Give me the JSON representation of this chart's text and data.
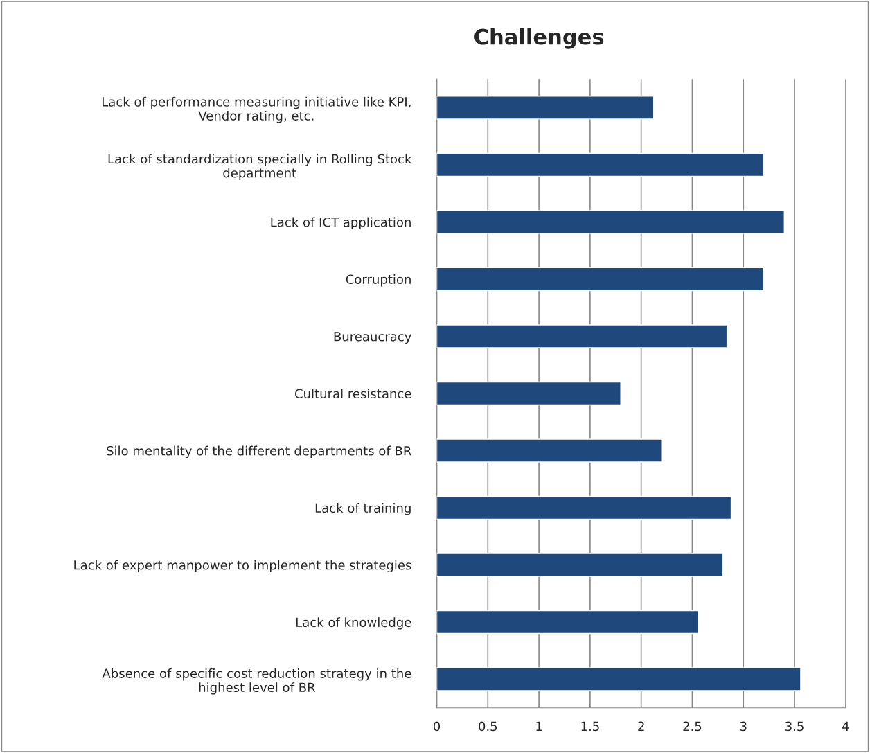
{
  "chart_data": {
    "type": "bar",
    "orientation": "horizontal",
    "title": "Challenges",
    "categories": [
      "Lack of performance measuring initiative like KPI,\nVendor rating, etc.",
      "Lack of standardization specially in Rolling Stock\ndepartment",
      "Lack of ICT application",
      "Corruption",
      "Bureaucracy",
      "Cultural resistance",
      "Silo mentality of the different departments of BR",
      "Lack of training",
      "Lack of expert manpower to implement the strategies",
      "Lack of knowledge",
      "Absence of specific cost reduction strategy in the\nhighest level of BR"
    ],
    "values": [
      2.12,
      3.2,
      3.4,
      3.2,
      2.84,
      1.8,
      2.2,
      2.88,
      2.8,
      2.56,
      3.56
    ],
    "color": "#1f497d",
    "xlim": [
      0,
      4
    ],
    "xticks": [
      0,
      0.5,
      1,
      1.5,
      2,
      2.5,
      3,
      3.5,
      4
    ],
    "grid": "x",
    "legend": false
  }
}
